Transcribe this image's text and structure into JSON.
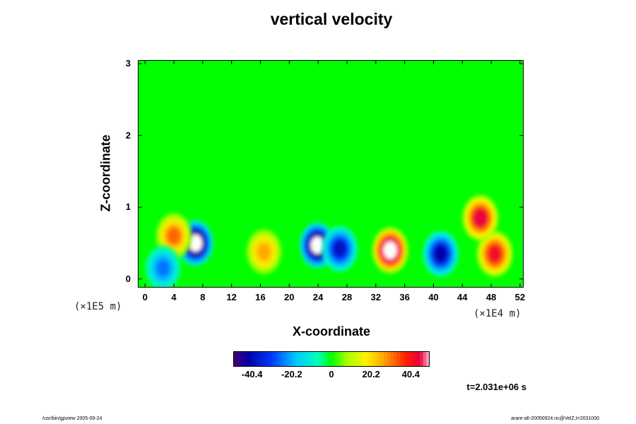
{
  "chart_data": {
    "type": "heatmap",
    "title": "vertical velocity",
    "xlabel": "X-coordinate",
    "ylabel": "Z-coordinate",
    "x_ticks": [
      "0",
      "4",
      "8",
      "12",
      "16",
      "20",
      "24",
      "28",
      "32",
      "36",
      "40",
      "44",
      "48",
      "52"
    ],
    "x_range": [
      -1,
      52.5
    ],
    "y_ticks": [
      "0",
      "1",
      "2",
      "3"
    ],
    "y_range": [
      -0.12,
      3.05
    ],
    "x_scale_label": "(×1E4 m)",
    "y_scale_label": "(×1E5 m)",
    "colorbar": {
      "ticks": [
        -40.4,
        -20.2,
        0,
        20.2,
        40.4
      ],
      "tick_labels": [
        "-40.4",
        "-20.2",
        "0",
        "20.2",
        "40.4"
      ],
      "range": [
        -50,
        50
      ],
      "levels": 60
    },
    "features": [
      {
        "x": 7.0,
        "z": 0.5,
        "value": -58
      },
      {
        "x": 23.9,
        "z": 0.47,
        "value": -58
      },
      {
        "x": 27.0,
        "z": 0.42,
        "value": -38
      },
      {
        "x": 34.0,
        "z": 0.4,
        "value": 58
      },
      {
        "x": 41.0,
        "z": 0.35,
        "value": -42
      },
      {
        "x": 48.5,
        "z": 0.35,
        "value": 42
      },
      {
        "x": 16.5,
        "z": 0.38,
        "value": 26
      },
      {
        "x": 46.5,
        "z": 0.85,
        "value": 45
      },
      {
        "x": 4.0,
        "z": 0.6,
        "value": 32
      },
      {
        "x": 2.5,
        "z": 0.15,
        "value": -25
      }
    ],
    "annotation": "t=2.031e+06 s"
  },
  "footer": {
    "left": "/usr/bin/gpview 2005-09-24",
    "right": "arare-all-20050924.nc@VelZ,t=2031000"
  },
  "colors": {
    "background": "#00ff00",
    "frame": "#000000"
  }
}
